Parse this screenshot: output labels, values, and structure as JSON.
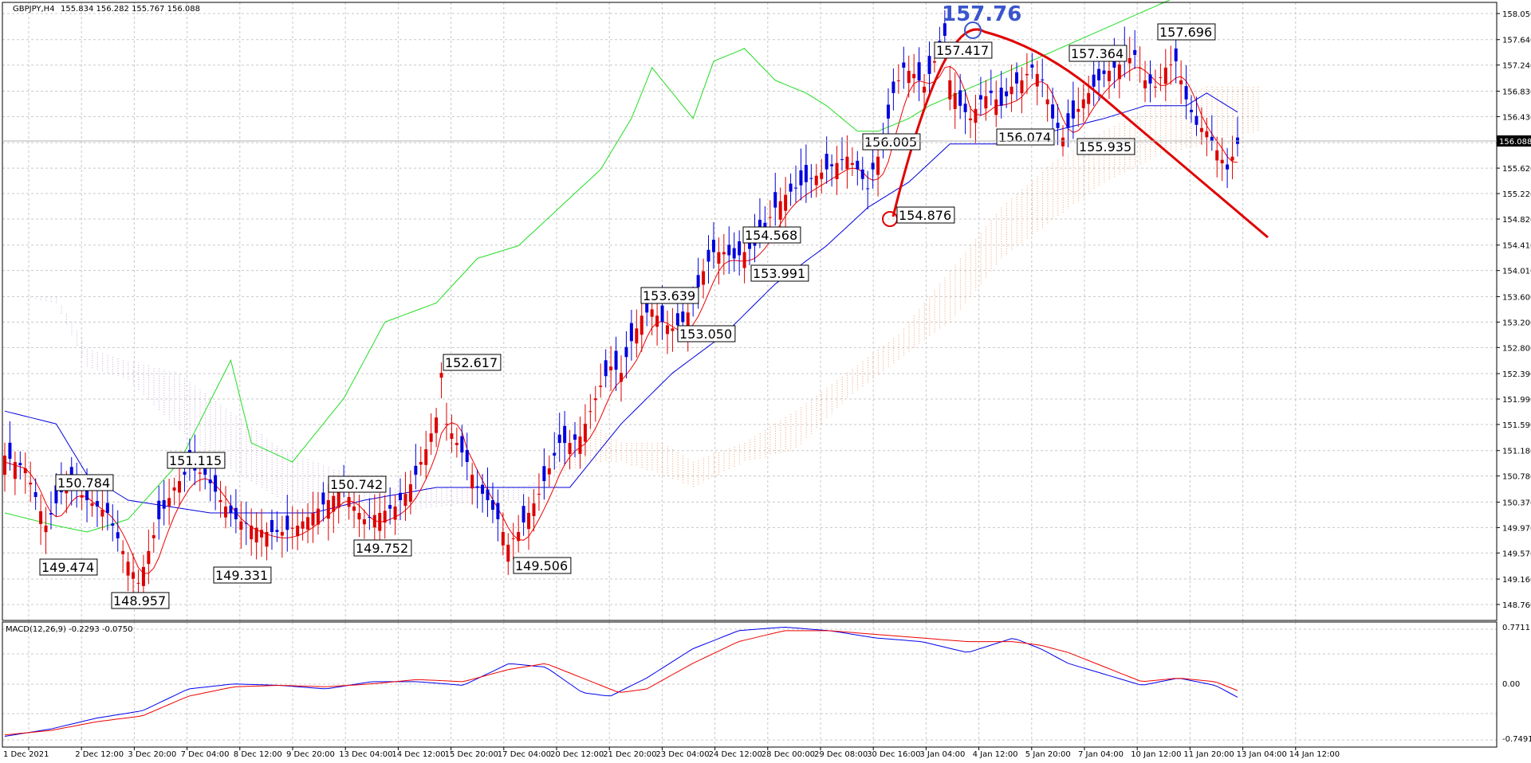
{
  "header": {
    "symbol": "GBPJPY,H4",
    "ohlc": "155.834 156.282 155.767 156.088"
  },
  "macd": {
    "label": "MACD(12,26,9) -0.2293 -0.0750",
    "axis": [
      "0.7711",
      "0.00",
      "-0.7491"
    ]
  },
  "chart_data": {
    "type": "candlestick",
    "y_axis_ticks": [
      "158.050",
      "157.640",
      "157.240",
      "156.830",
      "156.430",
      "156.020",
      "155.620",
      "155.220",
      "154.820",
      "154.410",
      "154.010",
      "153.600",
      "153.200",
      "152.800",
      "152.390",
      "151.990",
      "151.590",
      "151.180",
      "150.780",
      "150.370",
      "149.970",
      "149.570",
      "149.160",
      "148.760"
    ],
    "x_axis_ticks": [
      "1 Dec 2021",
      "2 Dec 12:00",
      "3 Dec 20:00",
      "7 Dec 04:00",
      "8 Dec 12:00",
      "9 Dec 20:00",
      "13 Dec 04:00",
      "14 Dec 12:00",
      "15 Dec 20:00",
      "17 Dec 04:00",
      "20 Dec 12:00",
      "21 Dec 20:00",
      "23 Dec 04:00",
      "24 Dec 12:00",
      "28 Dec 00:00",
      "29 Dec 08:00",
      "30 Dec 16:00",
      "3 Jan 04:00",
      "4 Jan 12:00",
      "5 Jan 20:00",
      "7 Jan 04:00",
      "10 Jan 12:00",
      "11 Jan 20:00",
      "13 Jan 04:00",
      "14 Jan 12:00"
    ],
    "current_price": "156.088",
    "peak_label": "157.76",
    "price_labels": [
      "150.784",
      "149.474",
      "148.957",
      "151.115",
      "149.331",
      "150.742",
      "149.752",
      "152.617",
      "149.506",
      "153.639",
      "153.050",
      "154.568",
      "153.991",
      "156.005",
      "154.876",
      "157.417",
      "156.074",
      "157.364",
      "155.935",
      "157.696"
    ]
  }
}
